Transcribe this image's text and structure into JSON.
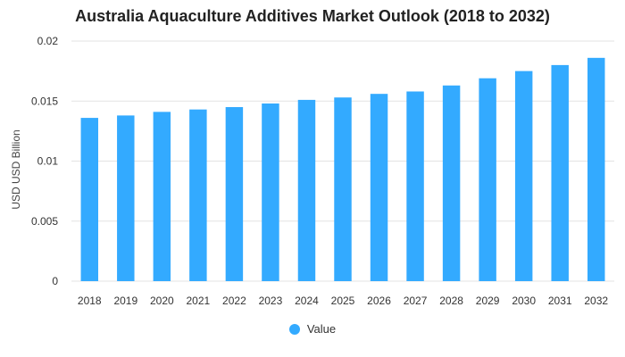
{
  "chart_data": {
    "type": "bar",
    "title": "Australia Aquaculture Additives Market Outlook (2018 to 2032)",
    "xlabel": "",
    "ylabel": "USD USD Billion",
    "categories": [
      "2018",
      "2019",
      "2020",
      "2021",
      "2022",
      "2023",
      "2024",
      "2025",
      "2026",
      "2027",
      "2028",
      "2029",
      "2030",
      "2031",
      "2032"
    ],
    "series": [
      {
        "name": "Value",
        "color": "#33aaff",
        "values": [
          0.0136,
          0.0138,
          0.0141,
          0.0143,
          0.0145,
          0.0148,
          0.0151,
          0.0153,
          0.0156,
          0.0158,
          0.0163,
          0.0169,
          0.0175,
          0.018,
          0.0186
        ]
      }
    ],
    "ylim": [
      0,
      0.02
    ],
    "yticks": [
      "0",
      "0.005",
      "0.01",
      "0.015",
      "0.02"
    ],
    "grid": true,
    "legend_position": "bottom"
  }
}
